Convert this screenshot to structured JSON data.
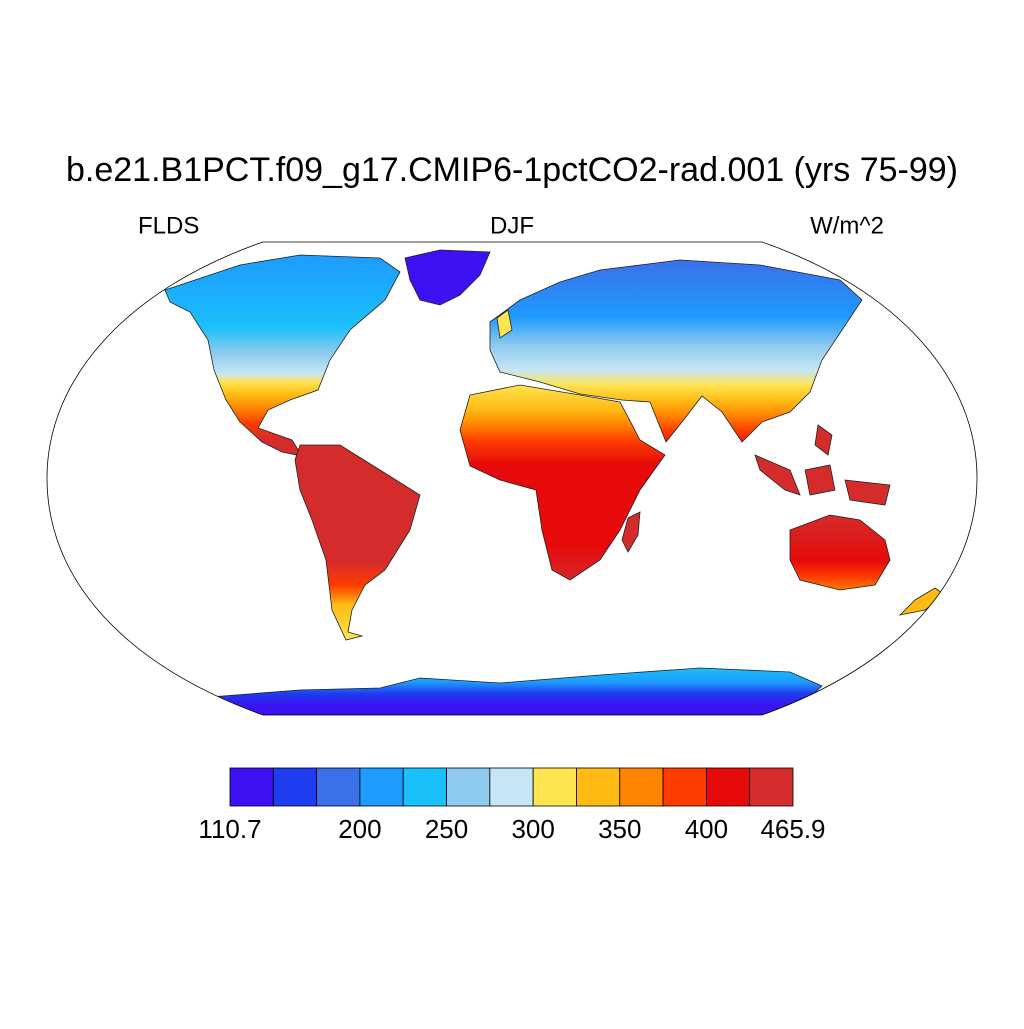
{
  "chart_data": {
    "type": "map",
    "title": "b.e21.B1PCT.f09_g17.CMIP6-1pctCO2-rad.001 (yrs 75-99)",
    "left_string": "FLDS",
    "center_string": "DJF",
    "right_string": "W/m^2",
    "colorbar": {
      "colors": [
        "#3c12f2",
        "#1e3cf0",
        "#3a70e8",
        "#1e9bff",
        "#19c0fa",
        "#8ecbee",
        "#c6e6f5",
        "#ffe451",
        "#ffbb14",
        "#ff8400",
        "#ff3c00",
        "#e60a0a",
        "#d42b2b"
      ],
      "ticks": [
        110.7,
        null,
        null,
        200,
        null,
        250,
        null,
        300,
        null,
        350,
        null,
        400,
        null,
        465.9
      ]
    }
  }
}
